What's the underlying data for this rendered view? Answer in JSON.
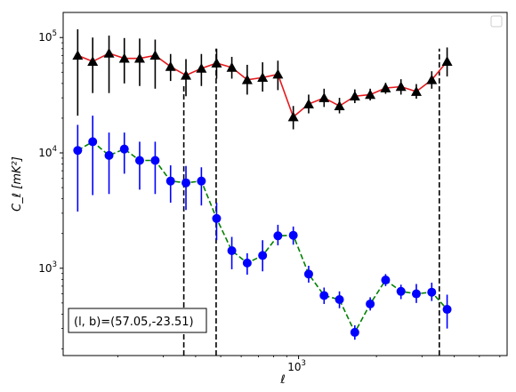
{
  "chart_data": {
    "type": "line",
    "xscale": "log",
    "yscale": "log",
    "xlim": [
      123,
      6400
    ],
    "ylim": [
      175,
      165000
    ],
    "xlabel": "ℓ",
    "ylabel": "C_ℓ  [mK²]",
    "x_ticks": [
      {
        "value": 1000,
        "label": "10",
        "exp": "3"
      }
    ],
    "y_ticks": [
      {
        "value": 1000,
        "label": "10",
        "exp": "3"
      },
      {
        "value": 10000,
        "label": "10",
        "exp": "4"
      },
      {
        "value": 100000,
        "label": "10",
        "exp": "5"
      }
    ],
    "grid": false,
    "legend": "top-right (empty)",
    "annotation": {
      "text": "(l, b)=(57.05,-23.51)",
      "placement": "bottom-left"
    },
    "vlines": [
      {
        "x": 360,
        "ymin": 175,
        "ymax": 39000
      },
      {
        "x": 480,
        "ymin": 175,
        "ymax": 80000
      },
      {
        "x": 3500,
        "ymin": 175,
        "ymax": 80000
      }
    ],
    "series": [
      {
        "line_color": "#e6191e",
        "line_style": "solid",
        "marker": "triangle",
        "marker_color": "#000000",
        "error_color": "#000000",
        "points": [
          {
            "x": 140,
            "y": 70000,
            "lo": 21000,
            "hi": 118000
          },
          {
            "x": 160,
            "y": 62000,
            "lo": 33000,
            "hi": 100000
          },
          {
            "x": 185,
            "y": 73000,
            "lo": 33000,
            "hi": 104000
          },
          {
            "x": 212,
            "y": 66000,
            "lo": 40000,
            "hi": 99000
          },
          {
            "x": 243,
            "y": 66000,
            "lo": 38000,
            "hi": 98000
          },
          {
            "x": 279,
            "y": 70000,
            "lo": 36000,
            "hi": 96000
          },
          {
            "x": 320,
            "y": 56000,
            "lo": 42000,
            "hi": 72000
          },
          {
            "x": 367,
            "y": 47000,
            "lo": 31000,
            "hi": 65000
          },
          {
            "x": 421,
            "y": 54000,
            "lo": 38000,
            "hi": 72000
          },
          {
            "x": 482,
            "y": 60000,
            "lo": 44000,
            "hi": 80000
          },
          {
            "x": 552,
            "y": 55000,
            "lo": 44000,
            "hi": 68000
          },
          {
            "x": 633,
            "y": 43000,
            "lo": 32000,
            "hi": 58000
          },
          {
            "x": 726,
            "y": 45000,
            "lo": 34000,
            "hi": 61000
          },
          {
            "x": 832,
            "y": 48000,
            "lo": 35000,
            "hi": 63000
          },
          {
            "x": 954,
            "y": 20500,
            "lo": 16000,
            "hi": 25500
          },
          {
            "x": 1094,
            "y": 26500,
            "lo": 22000,
            "hi": 32000
          },
          {
            "x": 1255,
            "y": 30000,
            "lo": 25000,
            "hi": 36000
          },
          {
            "x": 1439,
            "y": 25500,
            "lo": 22000,
            "hi": 30000
          },
          {
            "x": 1650,
            "y": 31000,
            "lo": 27000,
            "hi": 35500
          },
          {
            "x": 1892,
            "y": 32000,
            "lo": 28500,
            "hi": 36000
          },
          {
            "x": 2170,
            "y": 36500,
            "lo": 32500,
            "hi": 40500
          },
          {
            "x": 2488,
            "y": 37500,
            "lo": 32000,
            "hi": 43500
          },
          {
            "x": 2853,
            "y": 34000,
            "lo": 29500,
            "hi": 39500
          },
          {
            "x": 3272,
            "y": 43000,
            "lo": 36000,
            "hi": 51000
          },
          {
            "x": 3752,
            "y": 62000,
            "lo": 46000,
            "hi": 82000
          }
        ]
      },
      {
        "line_color": "#008000",
        "line_style": "dashed",
        "marker": "circle",
        "marker_color": "#0000ff",
        "error_color": "#0000ff",
        "points": [
          {
            "x": 140,
            "y": 10500,
            "lo": 3100,
            "hi": 17500
          },
          {
            "x": 160,
            "y": 12500,
            "lo": 4300,
            "hi": 21000
          },
          {
            "x": 185,
            "y": 9500,
            "lo": 4400,
            "hi": 15000
          },
          {
            "x": 212,
            "y": 10800,
            "lo": 6600,
            "hi": 15000
          },
          {
            "x": 243,
            "y": 8600,
            "lo": 4800,
            "hi": 12500
          },
          {
            "x": 279,
            "y": 8600,
            "lo": 4400,
            "hi": 12500
          },
          {
            "x": 320,
            "y": 5700,
            "lo": 3700,
            "hi": 7800
          },
          {
            "x": 367,
            "y": 5500,
            "lo": 3200,
            "hi": 7700
          },
          {
            "x": 421,
            "y": 5700,
            "lo": 3500,
            "hi": 7500
          },
          {
            "x": 482,
            "y": 2700,
            "lo": 1750,
            "hi": 3700
          },
          {
            "x": 552,
            "y": 1420,
            "lo": 980,
            "hi": 1870
          },
          {
            "x": 633,
            "y": 1110,
            "lo": 880,
            "hi": 1350
          },
          {
            "x": 726,
            "y": 1290,
            "lo": 940,
            "hi": 1750
          },
          {
            "x": 832,
            "y": 1910,
            "lo": 1580,
            "hi": 2380
          },
          {
            "x": 954,
            "y": 1930,
            "lo": 1600,
            "hi": 2300
          },
          {
            "x": 1094,
            "y": 890,
            "lo": 750,
            "hi": 1050
          },
          {
            "x": 1255,
            "y": 580,
            "lo": 490,
            "hi": 680
          },
          {
            "x": 1439,
            "y": 535,
            "lo": 450,
            "hi": 630
          },
          {
            "x": 1650,
            "y": 278,
            "lo": 240,
            "hi": 320
          },
          {
            "x": 1892,
            "y": 490,
            "lo": 430,
            "hi": 560
          },
          {
            "x": 2170,
            "y": 790,
            "lo": 700,
            "hi": 890
          },
          {
            "x": 2488,
            "y": 630,
            "lo": 540,
            "hi": 720
          },
          {
            "x": 2853,
            "y": 600,
            "lo": 500,
            "hi": 730
          },
          {
            "x": 3272,
            "y": 620,
            "lo": 520,
            "hi": 750
          },
          {
            "x": 3752,
            "y": 440,
            "lo": 300,
            "hi": 590
          }
        ]
      }
    ]
  }
}
